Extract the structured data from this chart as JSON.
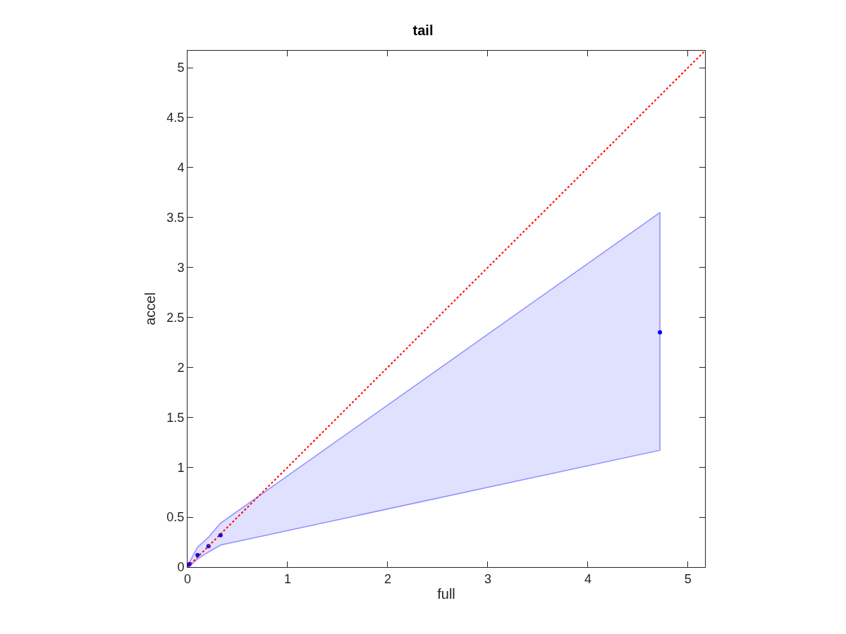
{
  "chart_data": {
    "type": "scatter",
    "title": "tail",
    "xlabel": "full",
    "ylabel": "accel",
    "xlim": [
      0,
      5.17
    ],
    "ylim": [
      0,
      5.17
    ],
    "xticks": [
      0,
      1,
      2,
      3,
      4,
      5
    ],
    "yticks": [
      0,
      0.5,
      1,
      1.5,
      2,
      2.5,
      3,
      3.5,
      4,
      4.5,
      5
    ],
    "marker": "circle",
    "series": [
      {
        "color": "#0000ff",
        "x": [
          0,
          0.02,
          0.1,
          0.21,
          0.33,
          4.72
        ],
        "values": [
          0,
          0.03,
          0.12,
          0.21,
          0.32,
          2.35
        ],
        "lower": [
          0,
          0.01,
          0.08,
          0.15,
          0.22,
          1.17
        ],
        "upper": [
          0,
          0.05,
          0.2,
          0.3,
          0.44,
          3.55
        ]
      },
      {
        "type": "line",
        "color": "#ff0000",
        "line_style": "dotted",
        "marker": "none",
        "x": [
          0,
          5.17
        ],
        "values": [
          0,
          5.17
        ]
      }
    ]
  }
}
